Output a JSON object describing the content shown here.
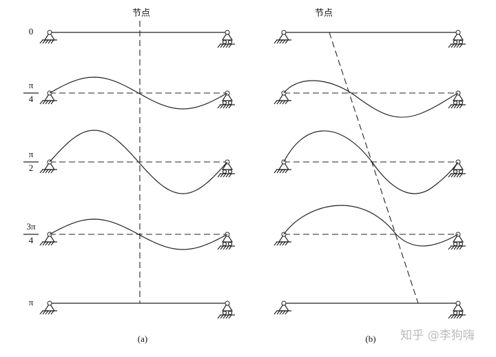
{
  "panels": [
    {
      "node_label": "节点",
      "caption": "(a)"
    },
    {
      "node_label": "节点",
      "caption": "(b)"
    }
  ],
  "phase_labels": [
    "0",
    {
      "numerator": "π",
      "denominator": "4"
    },
    {
      "numerator": "π",
      "denominator": "2"
    },
    {
      "numerator": "3π",
      "denominator": "4"
    },
    "π"
  ],
  "watermark": "知乎 @李狗嗨"
}
